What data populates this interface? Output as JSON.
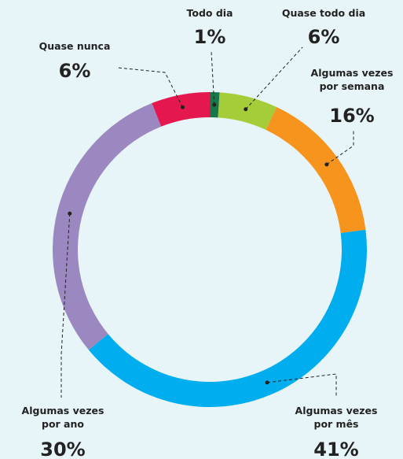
{
  "chart_data": {
    "type": "donut",
    "categories": [
      "Todo dia",
      "Quase todo dia",
      "Algumas vezes por semana",
      "Algumas vezes por mês",
      "Algumas vezes por ano",
      "Quase nunca"
    ],
    "values": [
      1,
      6,
      16,
      41,
      30,
      6
    ],
    "value_labels": [
      "1%",
      "6%",
      "16%",
      "41%",
      "30%",
      "6%"
    ],
    "colors": [
      "#16784a",
      "#a5cd39",
      "#f7941d",
      "#00adee",
      "#9b88c0",
      "#e4184e"
    ]
  }
}
